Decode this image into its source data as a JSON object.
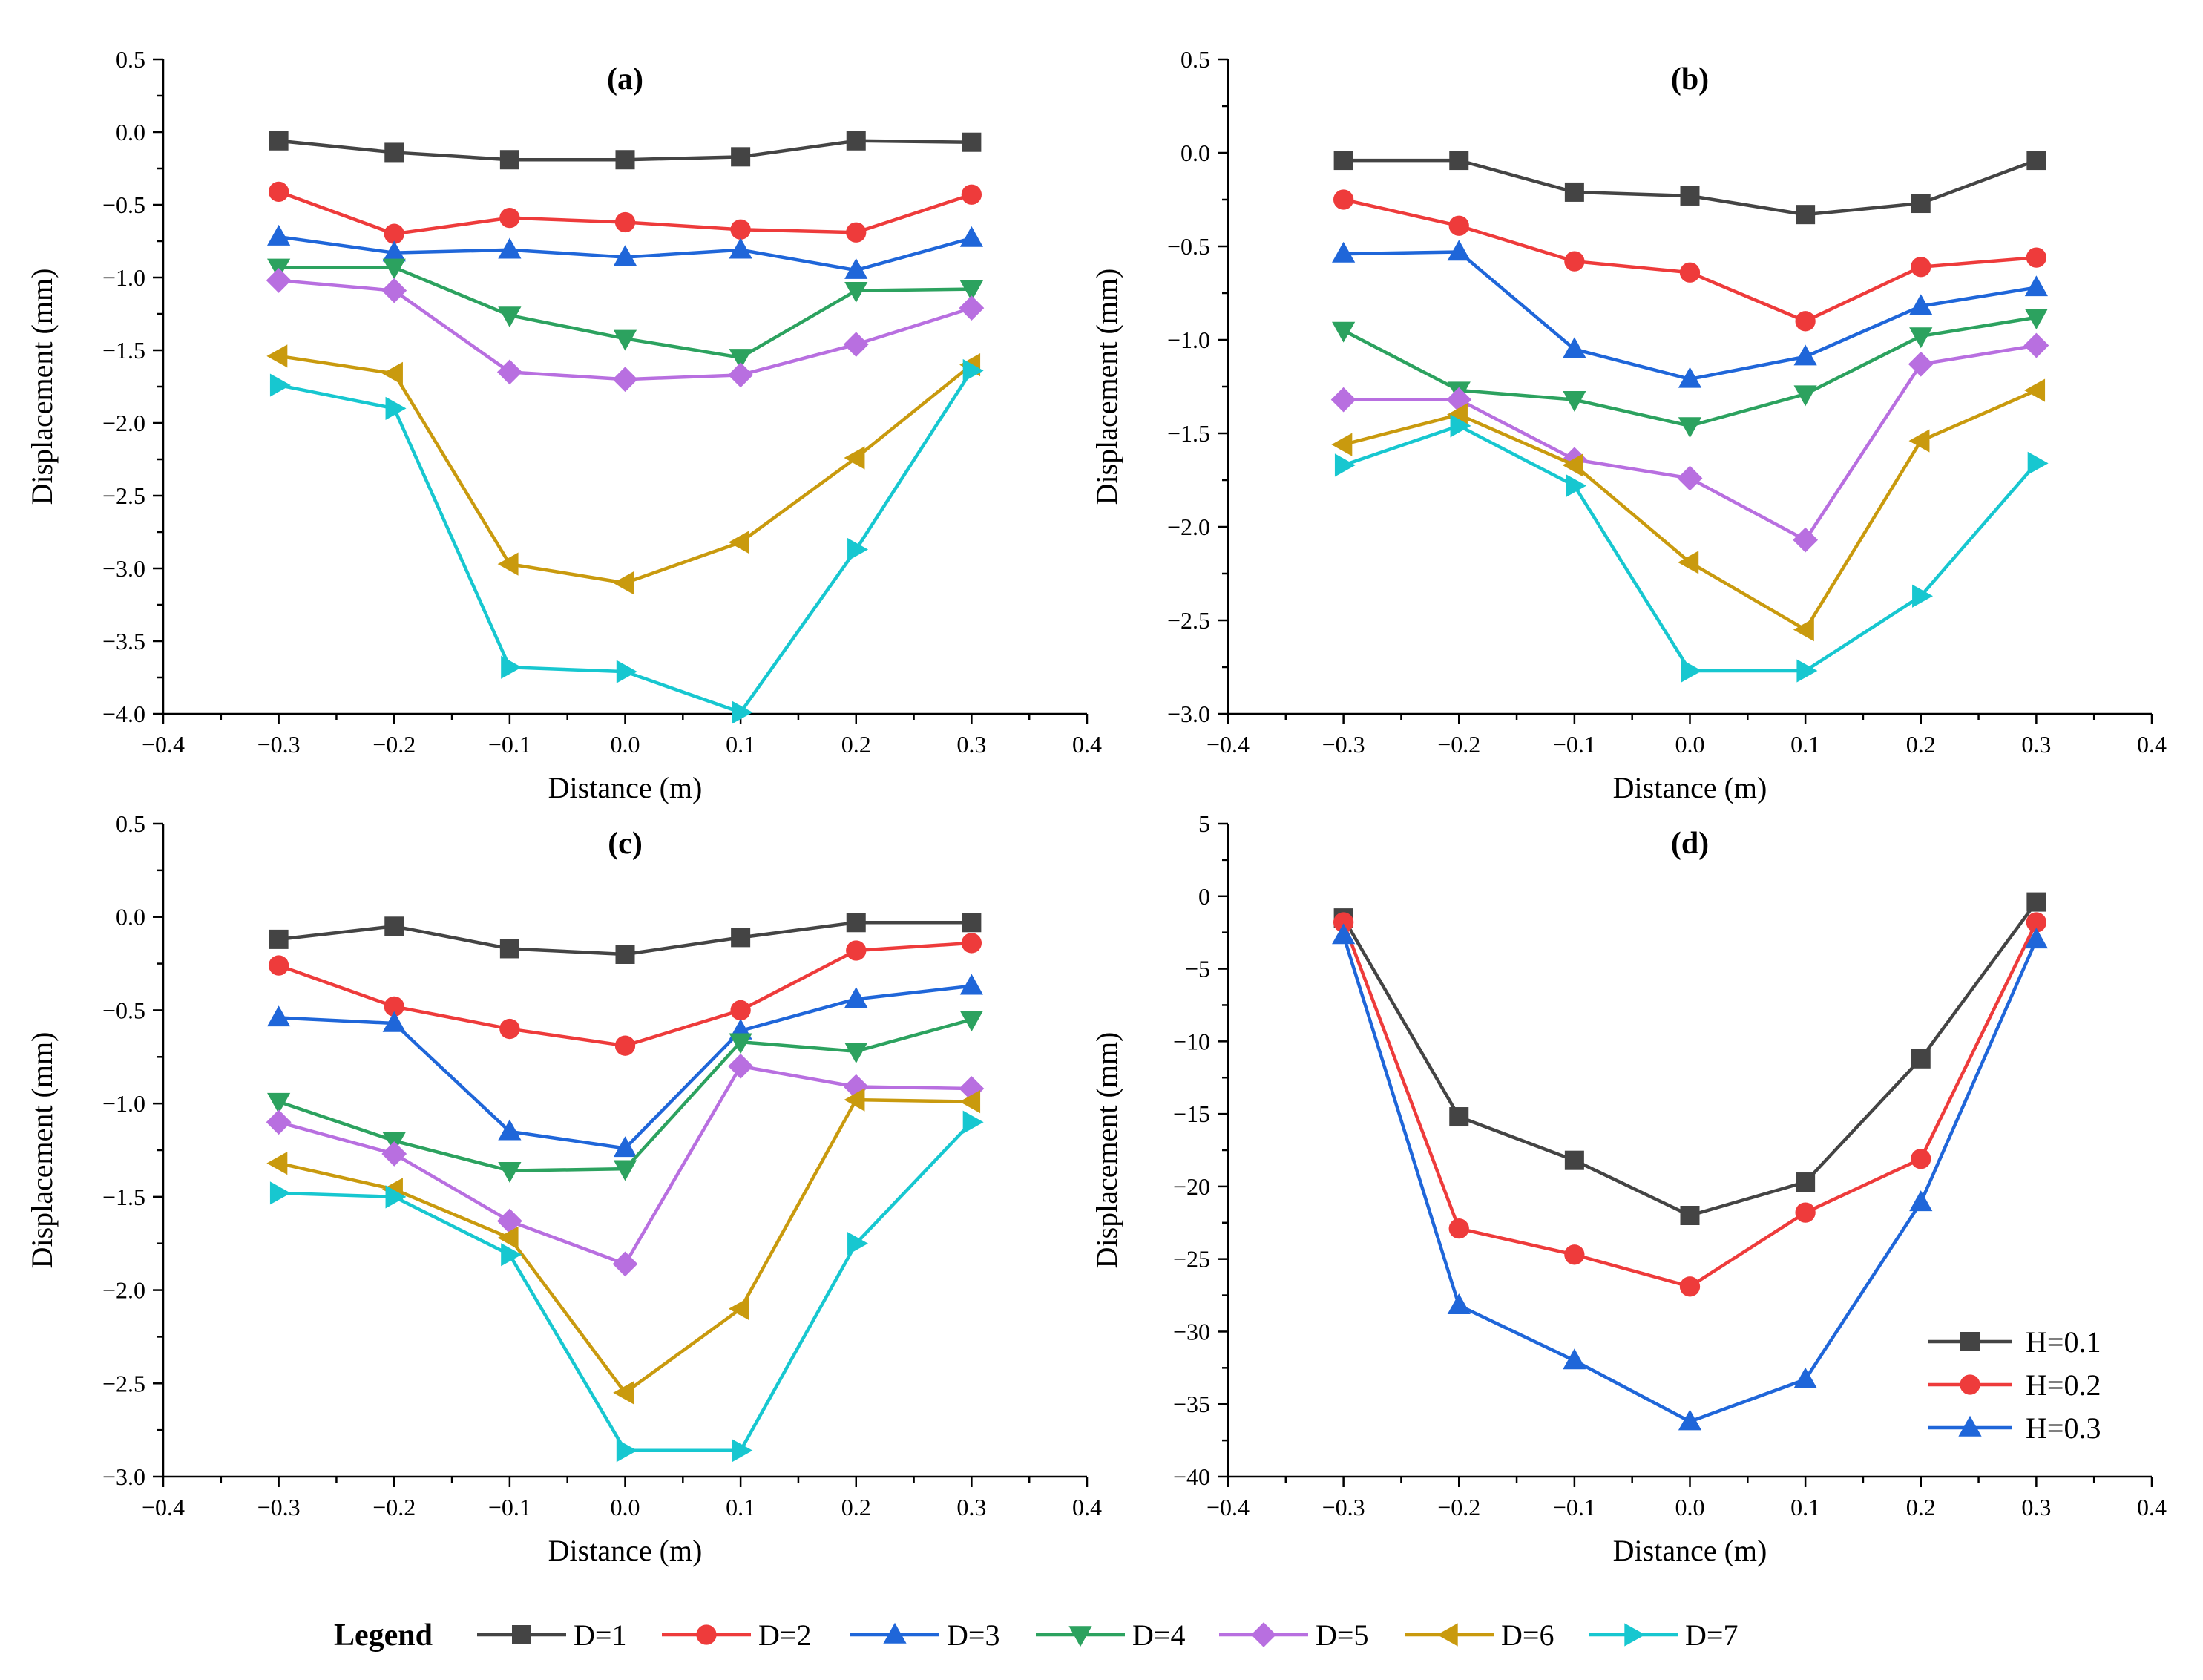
{
  "colors": {
    "D=1": "#444444",
    "D=2": "#ee3b3b",
    "D=3": "#1f66d9",
    "D=4": "#2ca25f",
    "D=5": "#b86fe0",
    "D=6": "#c99a0e",
    "D=7": "#17c7d0",
    "H=0.1": "#444444",
    "H=0.2": "#ee3b3b",
    "H=0.3": "#1f66d9"
  },
  "markers": {
    "D=1": "square",
    "D=2": "circle",
    "D=3": "triangle-up",
    "D=4": "triangle-down",
    "D=5": "diamond",
    "D=6": "triangle-left",
    "D=7": "triangle-right",
    "H=0.1": "square",
    "H=0.2": "circle",
    "H=0.3": "triangle-up"
  },
  "bottom_legend": {
    "title": "Legend",
    "entries": [
      "D=1",
      "D=2",
      "D=3",
      "D=4",
      "D=5",
      "D=6",
      "D=7"
    ]
  },
  "chart_data": [
    {
      "type": "line",
      "title": "(a)",
      "xlabel": "Distance (m)",
      "ylabel": "Displacement (mm)",
      "xlim": [
        -0.4,
        0.4
      ],
      "ylim": [
        -4.0,
        0.5
      ],
      "xticks": [
        -0.4,
        -0.3,
        -0.2,
        -0.1,
        0.0,
        0.1,
        0.2,
        0.3,
        0.4
      ],
      "xtick_labels": [
        "−0.4",
        "−0.3",
        "−0.2",
        "−0.1",
        "0.0",
        "0.1",
        "0.2",
        "0.3",
        "0.4"
      ],
      "yticks": [
        0.5,
        0.0,
        -0.5,
        -1.0,
        -1.5,
        -2.0,
        -2.5,
        -3.0,
        -3.5,
        -4.0
      ],
      "ytick_labels": [
        "0.5",
        "0.0",
        "−0.5",
        "−1.0",
        "−1.5",
        "−2.0",
        "−2.5",
        "−3.0",
        "−3.5",
        "−4.0"
      ],
      "x": [
        -0.3,
        -0.2,
        -0.1,
        0.0,
        0.1,
        0.2,
        0.3
      ],
      "series": [
        {
          "name": "D=1",
          "values": [
            -0.06,
            -0.14,
            -0.19,
            -0.19,
            -0.17,
            -0.06,
            -0.07
          ]
        },
        {
          "name": "D=2",
          "values": [
            -0.41,
            -0.7,
            -0.59,
            -0.62,
            -0.67,
            -0.69,
            -0.43
          ]
        },
        {
          "name": "D=3",
          "values": [
            -0.72,
            -0.83,
            -0.81,
            -0.86,
            -0.81,
            -0.95,
            -0.73
          ]
        },
        {
          "name": "D=4",
          "values": [
            -0.93,
            -0.93,
            -1.26,
            -1.42,
            -1.55,
            -1.09,
            -1.08
          ]
        },
        {
          "name": "D=5",
          "values": [
            -1.02,
            -1.09,
            -1.65,
            -1.7,
            -1.67,
            -1.46,
            -1.21
          ]
        },
        {
          "name": "D=6",
          "values": [
            -1.54,
            -1.66,
            -2.97,
            -3.1,
            -2.82,
            -2.24,
            -1.6
          ]
        },
        {
          "name": "D=7",
          "values": [
            -1.74,
            -1.9,
            -3.68,
            -3.71,
            -3.99,
            -2.87,
            -1.64
          ]
        }
      ]
    },
    {
      "type": "line",
      "title": "(b)",
      "xlabel": "Distance (m)",
      "ylabel": "Displacement (mm)",
      "xlim": [
        -0.4,
        0.4
      ],
      "ylim": [
        -3.0,
        0.5
      ],
      "xticks": [
        -0.4,
        -0.3,
        -0.2,
        -0.1,
        0.0,
        0.1,
        0.2,
        0.3,
        0.4
      ],
      "xtick_labels": [
        "−0.4",
        "−0.3",
        "−0.2",
        "−0.1",
        "0.0",
        "0.1",
        "0.2",
        "0.3",
        "0.4"
      ],
      "yticks": [
        0.5,
        0.0,
        -0.5,
        -1.0,
        -1.5,
        -2.0,
        -2.5,
        -3.0
      ],
      "ytick_labels": [
        "0.5",
        "0.0",
        "−0.5",
        "−1.0",
        "−1.5",
        "−2.0",
        "−2.5",
        "−3.0"
      ],
      "x": [
        -0.3,
        -0.2,
        -0.1,
        0.0,
        0.1,
        0.2,
        0.3
      ],
      "series": [
        {
          "name": "D=1",
          "values": [
            -0.04,
            -0.04,
            -0.21,
            -0.23,
            -0.33,
            -0.27,
            -0.04
          ]
        },
        {
          "name": "D=2",
          "values": [
            -0.25,
            -0.39,
            -0.58,
            -0.64,
            -0.9,
            -0.61,
            -0.56
          ]
        },
        {
          "name": "D=3",
          "values": [
            -0.54,
            -0.53,
            -1.05,
            -1.21,
            -1.09,
            -0.82,
            -0.72
          ]
        },
        {
          "name": "D=4",
          "values": [
            -0.95,
            -1.27,
            -1.32,
            -1.46,
            -1.29,
            -0.98,
            -0.88
          ]
        },
        {
          "name": "D=5",
          "values": [
            -1.32,
            -1.32,
            -1.64,
            -1.74,
            -2.07,
            -1.13,
            -1.03
          ]
        },
        {
          "name": "D=6",
          "values": [
            -1.56,
            -1.4,
            -1.67,
            -2.19,
            -2.55,
            -1.54,
            -1.27
          ]
        },
        {
          "name": "D=7",
          "values": [
            -1.67,
            -1.46,
            -1.78,
            -2.77,
            -2.77,
            -2.37,
            -1.66
          ]
        }
      ]
    },
    {
      "type": "line",
      "title": "(c)",
      "xlabel": "Distance (m)",
      "ylabel": "Displacement (mm)",
      "xlim": [
        -0.4,
        0.4
      ],
      "ylim": [
        -3.0,
        0.5
      ],
      "xticks": [
        -0.4,
        -0.3,
        -0.2,
        -0.1,
        0.0,
        0.1,
        0.2,
        0.3,
        0.4
      ],
      "xtick_labels": [
        "−0.4",
        "−0.3",
        "−0.2",
        "−0.1",
        "0.0",
        "0.1",
        "0.2",
        "0.3",
        "0.4"
      ],
      "yticks": [
        0.5,
        0.0,
        -0.5,
        -1.0,
        -1.5,
        -2.0,
        -2.5,
        -3.0
      ],
      "ytick_labels": [
        "0.5",
        "0.0",
        "−0.5",
        "−1.0",
        "−1.5",
        "−2.0",
        "−2.5",
        "−3.0"
      ],
      "x": [
        -0.3,
        -0.2,
        -0.1,
        0.0,
        0.1,
        0.2,
        0.3
      ],
      "series": [
        {
          "name": "D=1",
          "values": [
            -0.12,
            -0.05,
            -0.17,
            -0.2,
            -0.11,
            -0.03,
            -0.03
          ]
        },
        {
          "name": "D=2",
          "values": [
            -0.26,
            -0.48,
            -0.6,
            -0.69,
            -0.5,
            -0.18,
            -0.14
          ]
        },
        {
          "name": "D=3",
          "values": [
            -0.54,
            -0.57,
            -1.15,
            -1.24,
            -0.61,
            -0.44,
            -0.37
          ]
        },
        {
          "name": "D=4",
          "values": [
            -0.99,
            -1.2,
            -1.36,
            -1.35,
            -0.67,
            -0.72,
            -0.55
          ]
        },
        {
          "name": "D=5",
          "values": [
            -1.1,
            -1.27,
            -1.63,
            -1.86,
            -0.8,
            -0.91,
            -0.92
          ]
        },
        {
          "name": "D=6",
          "values": [
            -1.32,
            -1.46,
            -1.72,
            -2.55,
            -2.1,
            -0.98,
            -0.99
          ]
        },
        {
          "name": "D=7",
          "values": [
            -1.48,
            -1.5,
            -1.81,
            -2.86,
            -2.86,
            -1.75,
            -1.1
          ]
        }
      ]
    },
    {
      "type": "line",
      "title": "(d)",
      "xlabel": "Distance (m)",
      "ylabel": "Displacement (mm)",
      "xlim": [
        -0.4,
        0.4
      ],
      "ylim": [
        -40,
        5
      ],
      "xticks": [
        -0.4,
        -0.3,
        -0.2,
        -0.1,
        0.0,
        0.1,
        0.2,
        0.3,
        0.4
      ],
      "xtick_labels": [
        "−0.4",
        "−0.3",
        "−0.2",
        "−0.1",
        "0.0",
        "0.1",
        "0.2",
        "0.3",
        "0.4"
      ],
      "yticks": [
        5,
        0,
        -5,
        -10,
        -15,
        -20,
        -25,
        -30,
        -35,
        -40
      ],
      "ytick_labels": [
        "5",
        "0",
        "−5",
        "−10",
        "−15",
        "−20",
        "−25",
        "−30",
        "−35",
        "−40"
      ],
      "legend_position": "bottom-right",
      "x": [
        -0.3,
        -0.2,
        -0.1,
        0.0,
        0.1,
        0.2,
        0.3
      ],
      "series": [
        {
          "name": "H=0.1",
          "values": [
            -1.5,
            -15.2,
            -18.2,
            -22.0,
            -19.7,
            -11.2,
            -0.4
          ]
        },
        {
          "name": "H=0.2",
          "values": [
            -1.8,
            -22.9,
            -24.7,
            -26.9,
            -21.8,
            -18.1,
            -1.8
          ]
        },
        {
          "name": "H=0.3",
          "values": [
            -2.7,
            -28.2,
            -32.0,
            -36.2,
            -33.3,
            -21.1,
            -3.0
          ]
        }
      ]
    }
  ]
}
